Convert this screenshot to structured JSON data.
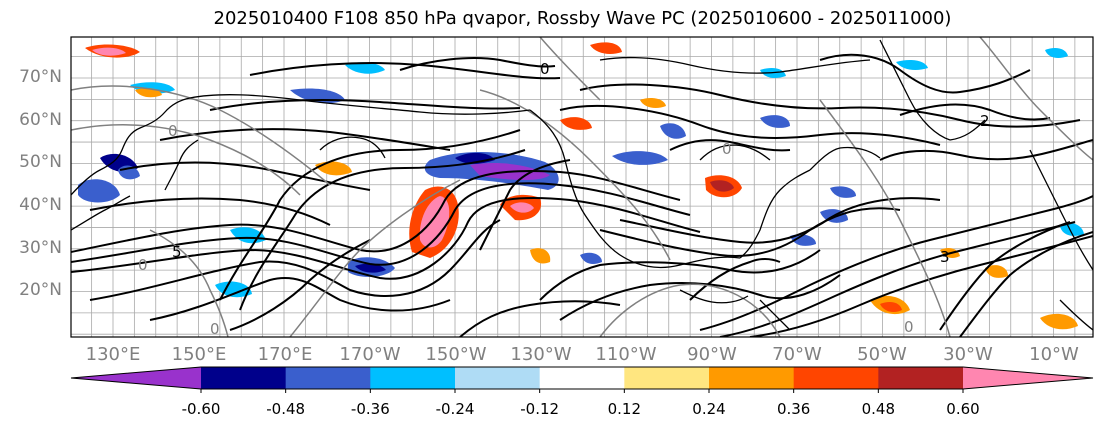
{
  "title": "2025010400 F108 850 hPa qvapor, Rossby Wave PC (2025010600 - 2025011000)",
  "latitudes": [
    "70°N",
    "60°N",
    "50°N",
    "40°N",
    "30°N",
    "20°N"
  ],
  "longitudes": [
    "130°E",
    "150°E",
    "170°E",
    "170°W",
    "150°W",
    "130°W",
    "110°W",
    "90°W",
    "70°W",
    "50°W",
    "30°W",
    "10°W"
  ],
  "colorbar": {
    "ticks": [
      "-0.60",
      "-0.48",
      "-0.36",
      "-0.24",
      "-0.12",
      "0.12",
      "0.24",
      "0.36",
      "0.48",
      "0.60"
    ],
    "colors": [
      "#9932cc",
      "#00008b",
      "#3a5fcd",
      "#00bfff",
      "#afdcf5",
      "#ffffff",
      "#ffe680",
      "#ff9a00",
      "#ff4500",
      "#b22222",
      "#ff86b0"
    ]
  },
  "contour_labels": {
    "black": [
      "0",
      "2",
      "3",
      "5"
    ],
    "gray": [
      "0",
      "0",
      "0",
      "0",
      "0"
    ]
  }
}
